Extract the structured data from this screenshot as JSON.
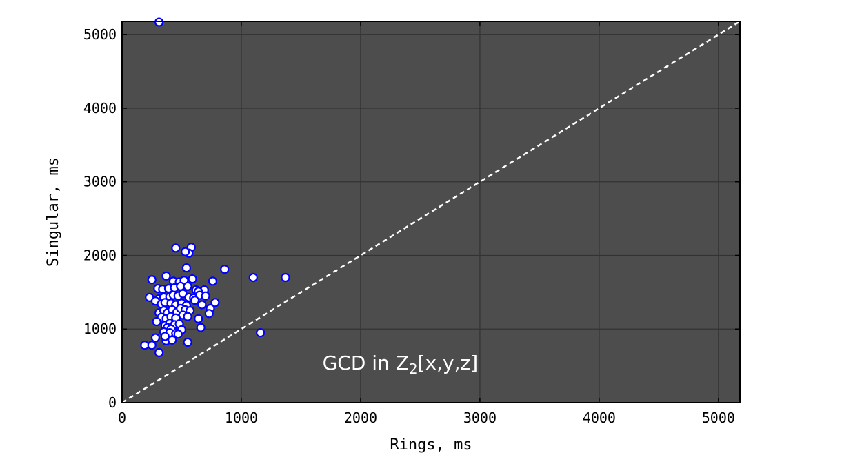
{
  "chart_data": {
    "type": "scatter",
    "title": "",
    "xlabel": "Rings, ms",
    "ylabel": "Singular, ms",
    "annotation": {
      "main": "GCD in Z",
      "sub": "2",
      "rest": "[x,y,z]"
    },
    "xlim": [
      0,
      5180
    ],
    "ylim": [
      0,
      5180
    ],
    "xticks": [
      0,
      1000,
      2000,
      3000,
      4000,
      5000
    ],
    "yticks": [
      0,
      1000,
      2000,
      3000,
      4000,
      5000
    ],
    "xtick_labels": [
      "0",
      "1000",
      "2000",
      "3000",
      "4000",
      "5000"
    ],
    "ytick_labels": [
      "0",
      "1000",
      "2000",
      "3000",
      "4000",
      "5000"
    ],
    "grid": true,
    "reference_line": {
      "style": "dashed",
      "from": [
        0,
        0
      ],
      "to": [
        5180,
        5180
      ]
    },
    "colors": {
      "plot_background": "#4d4d4d",
      "marker_fill": "#ffffff",
      "marker_edge": "#0000ff",
      "reference_line": "#ffffff",
      "grid": "#333333"
    },
    "series": [
      {
        "points": [
          [
            310,
            5170
          ],
          [
            450,
            2100
          ],
          [
            580,
            2110
          ],
          [
            560,
            2030
          ],
          [
            530,
            2050
          ],
          [
            860,
            1810
          ],
          [
            540,
            1830
          ],
          [
            1100,
            1700
          ],
          [
            1370,
            1700
          ],
          [
            250,
            1670
          ],
          [
            370,
            1720
          ],
          [
            430,
            1650
          ],
          [
            480,
            1640
          ],
          [
            520,
            1660
          ],
          [
            590,
            1680
          ],
          [
            760,
            1650
          ],
          [
            300,
            1550
          ],
          [
            340,
            1540
          ],
          [
            390,
            1550
          ],
          [
            440,
            1560
          ],
          [
            490,
            1580
          ],
          [
            550,
            1580
          ],
          [
            620,
            1530
          ],
          [
            690,
            1530
          ],
          [
            640,
            1510
          ],
          [
            230,
            1430
          ],
          [
            310,
            1410
          ],
          [
            350,
            1430
          ],
          [
            400,
            1440
          ],
          [
            430,
            1460
          ],
          [
            470,
            1450
          ],
          [
            510,
            1480
          ],
          [
            560,
            1430
          ],
          [
            600,
            1420
          ],
          [
            650,
            1460
          ],
          [
            700,
            1450
          ],
          [
            280,
            1380
          ],
          [
            330,
            1340
          ],
          [
            360,
            1360
          ],
          [
            410,
            1350
          ],
          [
            450,
            1330
          ],
          [
            500,
            1350
          ],
          [
            540,
            1320
          ],
          [
            610,
            1390
          ],
          [
            670,
            1330
          ],
          [
            780,
            1360
          ],
          [
            740,
            1280
          ],
          [
            310,
            1220
          ],
          [
            350,
            1250
          ],
          [
            380,
            1220
          ],
          [
            420,
            1260
          ],
          [
            460,
            1230
          ],
          [
            490,
            1280
          ],
          [
            530,
            1260
          ],
          [
            570,
            1250
          ],
          [
            730,
            1210
          ],
          [
            330,
            1160
          ],
          [
            370,
            1140
          ],
          [
            410,
            1170
          ],
          [
            450,
            1150
          ],
          [
            510,
            1190
          ],
          [
            550,
            1170
          ],
          [
            640,
            1140
          ],
          [
            290,
            1100
          ],
          [
            360,
            1050
          ],
          [
            400,
            1080
          ],
          [
            440,
            1060
          ],
          [
            480,
            1070
          ],
          [
            380,
            1020
          ],
          [
            410,
            1000
          ],
          [
            660,
            1020
          ],
          [
            500,
            990
          ],
          [
            350,
            960
          ],
          [
            400,
            950
          ],
          [
            450,
            940
          ],
          [
            470,
            930
          ],
          [
            1160,
            950
          ],
          [
            280,
            880
          ],
          [
            370,
            840
          ],
          [
            420,
            850
          ],
          [
            550,
            820
          ],
          [
            360,
            900
          ],
          [
            190,
            780
          ],
          [
            250,
            780
          ],
          [
            310,
            680
          ]
        ]
      }
    ]
  }
}
